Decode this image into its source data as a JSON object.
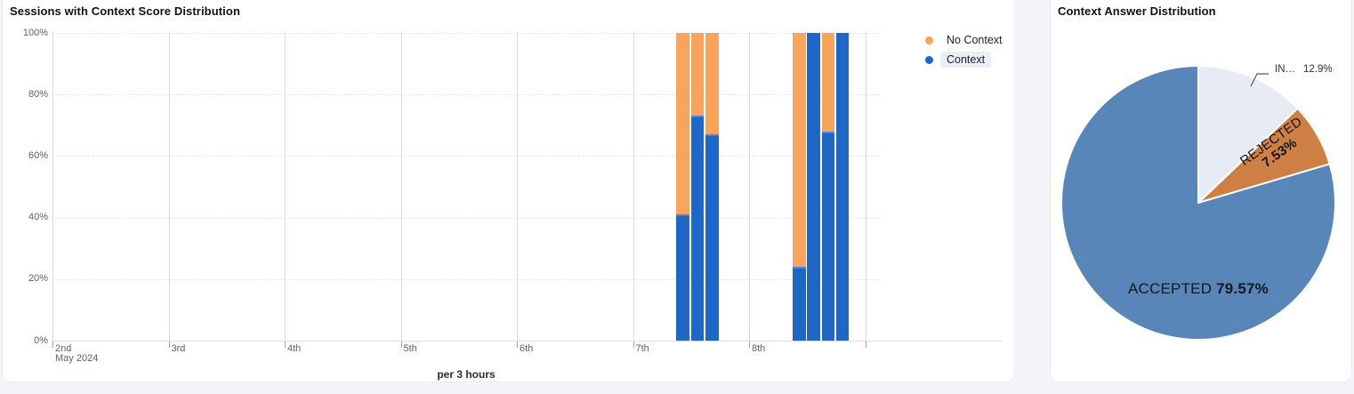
{
  "page": {
    "background": "#f4f5f8"
  },
  "bar_panel": {
    "title": "Sessions with Context Score Distribution",
    "xlabel": "per 3 hours",
    "legend": [
      {
        "label": "No Context",
        "color": "#F8A45C",
        "highlighted": false
      },
      {
        "label": "Context",
        "color": "#1F67C5",
        "highlighted": true
      }
    ]
  },
  "pie_panel": {
    "title": "Context Answer Distribution",
    "callout": {
      "label": "IN…",
      "pct": "12.9%"
    },
    "rejected": {
      "label": "REJECTED",
      "pct": "7.53%"
    },
    "accepted": {
      "label": "ACCEPTED",
      "pct": "79.57%"
    }
  },
  "chart_data": [
    {
      "type": "bar",
      "title": "Sessions with Context Score Distribution",
      "stacked": true,
      "grid": true,
      "legend_position": "right",
      "x_axis": {
        "unit_label": "per 3 hours",
        "tick_labels": [
          "2nd",
          "3rd",
          "4th",
          "5th",
          "6th",
          "7th",
          "8th"
        ],
        "first_tick_sublabel": "May 2024",
        "extra_unlabeled_tick": true
      },
      "y_axis": {
        "tick_labels": [
          "0%",
          "20%",
          "40%",
          "60%",
          "80%",
          "100%"
        ],
        "range": [
          0,
          100
        ]
      },
      "x_day_of_may": [
        7.375,
        7.5,
        7.625,
        8.375,
        8.5,
        8.625,
        8.75
      ],
      "series": [
        {
          "name": "Context",
          "color": "#1F67C5",
          "values": [
            41,
            73,
            67,
            24,
            100,
            68,
            100
          ]
        },
        {
          "name": "No Context",
          "color": "#F8A45C",
          "values": [
            59,
            27,
            33,
            76,
            0,
            32,
            0
          ]
        }
      ]
    },
    {
      "type": "pie",
      "title": "Context Answer Distribution",
      "start_angle_deg": 0,
      "direction": "clockwise",
      "slices": [
        {
          "label": "IN…",
          "value": 12.9,
          "color": "#E7EBF3"
        },
        {
          "label": "REJECTED",
          "value": 7.53,
          "color": "#CE8044"
        },
        {
          "label": "ACCEPTED",
          "value": 79.57,
          "color": "#5886B8"
        }
      ]
    }
  ]
}
